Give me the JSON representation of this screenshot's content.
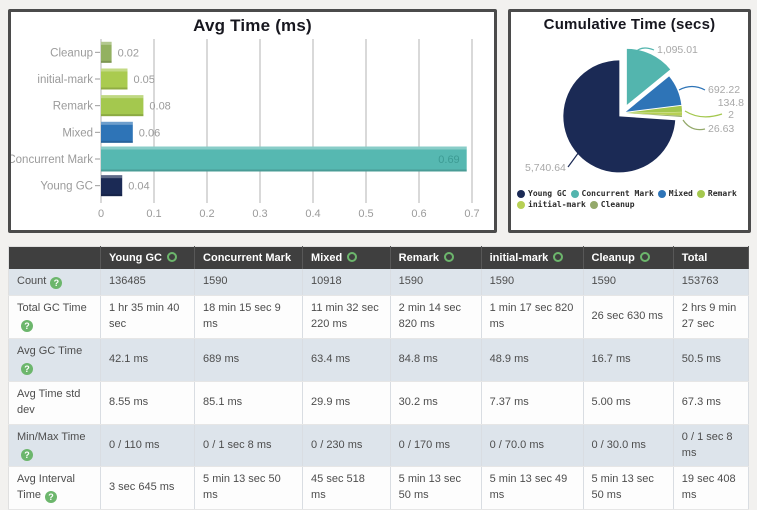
{
  "chart_data": [
    {
      "type": "bar",
      "orientation": "horizontal",
      "title": "Avg Time (ms)",
      "categories": [
        "Cleanup",
        "initial-mark",
        "Remark",
        "Mixed",
        "Concurrent Mark",
        "Young GC"
      ],
      "values": [
        0.02,
        0.05,
        0.08,
        0.06,
        0.69,
        0.04
      ],
      "value_labels": [
        "0.02",
        "0.05",
        "0.08",
        "0.06",
        "0.69",
        "0.04"
      ],
      "colors": [
        "#93b161",
        "#aacb4f",
        "#a4c84e",
        "#2e74b7",
        "#56b8b1",
        "#1b2a55"
      ],
      "xlim": [
        0,
        0.7
      ],
      "xticks": [
        "0",
        "0.1",
        "0.2",
        "0.3",
        "0.4",
        "0.5",
        "0.6",
        "0.7"
      ],
      "grid": true
    },
    {
      "type": "pie",
      "title": "Cumulative Time (secs)",
      "slices": [
        {
          "name": "Concurrent Mark",
          "value": 1095.01,
          "color": "#53b5ae",
          "label_lines": [
            "1,095.01"
          ]
        },
        {
          "name": "Mixed",
          "value": 692.22,
          "color": "#2e74b7",
          "label_lines": [
            "692.22"
          ]
        },
        {
          "name": "Remark",
          "value": 134.82,
          "color": "#a4c84e",
          "label_lines": [
            "134.8",
            "2"
          ]
        },
        {
          "name": "initial-mark",
          "value": 77.82,
          "color": "#b7d054",
          "label_lines": []
        },
        {
          "name": "Cleanup",
          "value": 26.63,
          "color": "#94a96a",
          "label_lines": [
            "26.63"
          ]
        },
        {
          "name": "Young GC",
          "value": 5740.64,
          "color": "#1b2a55",
          "label_lines": [
            "5,740.64"
          ]
        }
      ],
      "legend": [
        "Young GC",
        "Concurrent Mark",
        "Mixed",
        "Remark",
        "initial-mark",
        "Cleanup"
      ],
      "legend_position": "bottom"
    }
  ],
  "table": {
    "columns": [
      {
        "label": "",
        "icon": false
      },
      {
        "label": "Young GC",
        "icon": true
      },
      {
        "label": "Concurrent Mark",
        "icon": false
      },
      {
        "label": "Mixed",
        "icon": true
      },
      {
        "label": "Remark",
        "icon": true
      },
      {
        "label": "initial-mark",
        "icon": true
      },
      {
        "label": "Cleanup",
        "icon": true
      },
      {
        "label": "Total",
        "icon": false
      }
    ],
    "rows": [
      {
        "label": "Count",
        "help": true,
        "cells": [
          "136485",
          "1590",
          "10918",
          "1590",
          "1590",
          "1590",
          "153763"
        ]
      },
      {
        "label": "Total GC Time",
        "help": true,
        "cells": [
          "1 hr 35 min 40 sec",
          "18 min 15 sec 9 ms",
          "11 min 32 sec 220 ms",
          "2 min 14 sec 820 ms",
          "1 min 17 sec 820 ms",
          "26 sec 630 ms",
          "2 hrs 9 min 27 sec"
        ]
      },
      {
        "label": "Avg GC Time",
        "help": true,
        "cells": [
          "42.1 ms",
          "689 ms",
          "63.4 ms",
          "84.8 ms",
          "48.9 ms",
          "16.7 ms",
          "50.5 ms"
        ]
      },
      {
        "label": "Avg Time std dev",
        "help": false,
        "cells": [
          "8.55 ms",
          "85.1 ms",
          "29.9 ms",
          "30.2 ms",
          "7.37 ms",
          "5.00 ms",
          "67.3 ms"
        ]
      },
      {
        "label": "Min/Max Time",
        "help": true,
        "cells": [
          "0 / 110 ms",
          "0 / 1 sec 8 ms",
          "0 / 230 ms",
          "0 / 170 ms",
          "0 / 70.0 ms",
          "0 / 30.0 ms",
          "0 / 1 sec 8 ms"
        ]
      },
      {
        "label": "Avg Interval Time",
        "help": true,
        "cells": [
          "3 sec 645 ms",
          "5 min 13 sec 50 ms",
          "45 sec 518 ms",
          "5 min 13 sec 50 ms",
          "5 min 13 sec 49 ms",
          "5 min 13 sec 50 ms",
          "19 sec 408 ms"
        ]
      }
    ]
  },
  "colors": {
    "accent_green": "#6cb66c",
    "header_bg": "#3f3f3f",
    "row_stripe": "#dde4eb",
    "panel_border": "#4b4b4b",
    "axis_text": "#9b9b9b",
    "pie_label_text": "#a8a8a8"
  }
}
